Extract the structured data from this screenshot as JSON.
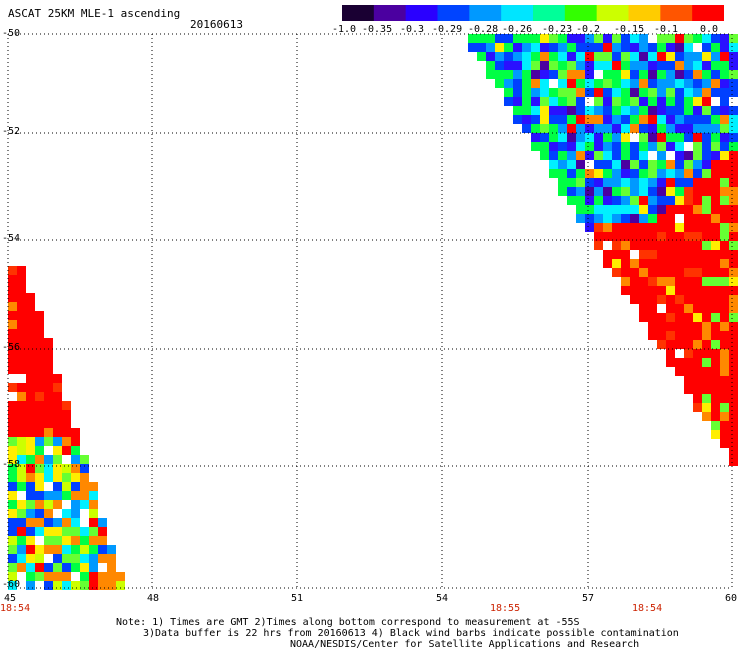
{
  "header": {
    "title": "ASCAT 25KM MLE-1 ascending",
    "date": "20160613"
  },
  "colorbar": {
    "labels": [
      "-1.0",
      "-0.35",
      "-0.3",
      "-0.29",
      "-0.28",
      "-0.26",
      "-0.23",
      "-0.2",
      "-0.15",
      "-0.1",
      "0.0"
    ],
    "colors": [
      "#1a0033",
      "#4b00a0",
      "#2a00ff",
      "#0044ff",
      "#0099ff",
      "#00e5ff",
      "#00ff99",
      "#33ff00",
      "#ccff00",
      "#ffcc00",
      "#ff5500",
      "#ff0000"
    ]
  },
  "axes": {
    "y_labels": [
      "-50",
      "-52",
      "-54",
      "-56",
      "-58",
      "-60"
    ],
    "x_labels": [
      "45",
      "48",
      "51",
      "54",
      "57",
      "60"
    ],
    "time_labels": [
      "18:54",
      "18:55",
      "18:54"
    ]
  },
  "map": {
    "lon_range": [
      45,
      60
    ],
    "lat_range": [
      -60,
      -50
    ]
  },
  "notes": {
    "line1": "Note: 1) Times are GMT 2)Times along bottom correspond to measurement at -55S",
    "line2": "3)Data buffer is 22 hrs from 20160613 4) Black wind barbs indicate possible contamination",
    "line3": "NOAA/NESDIS/Center for Satellite Applications and Research"
  }
}
